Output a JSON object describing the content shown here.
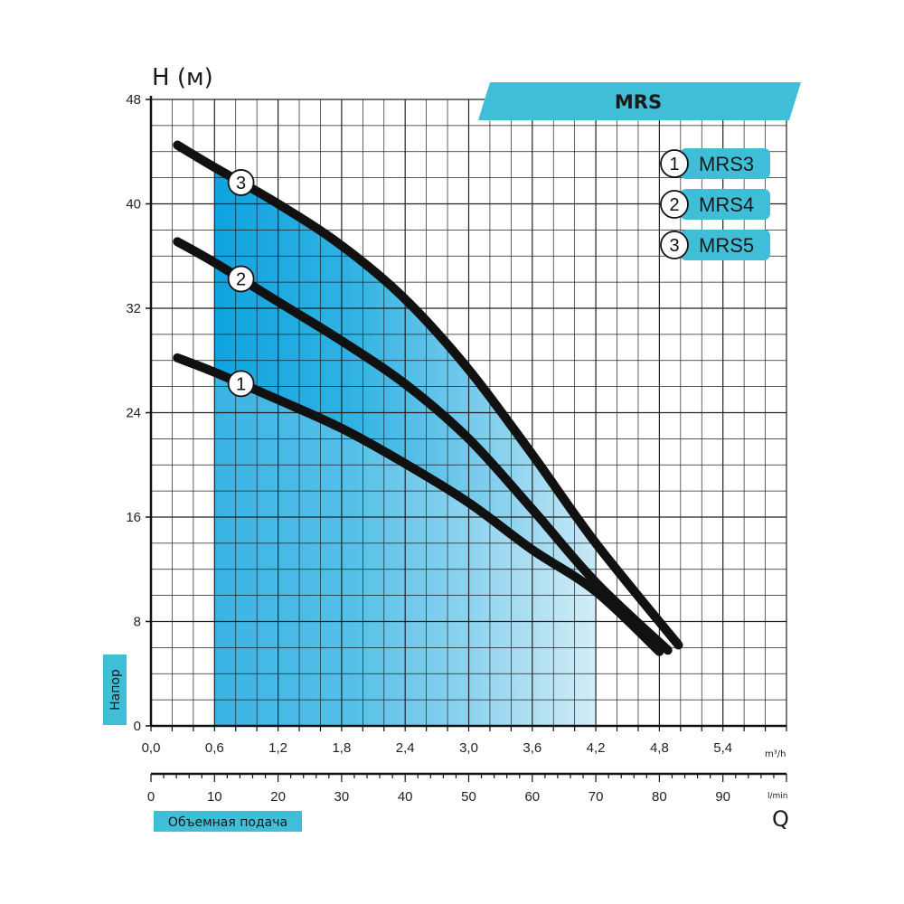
{
  "chart_data": {
    "type": "line",
    "title": "MRS",
    "ylabel": "H (м)",
    "y_side_label": "Напор",
    "xlabel": "Q",
    "x_side_label": "Объемная подача",
    "x_unit_m3h": "m³/h",
    "x_unit_lmin": "l/min",
    "ylim": [
      0,
      48
    ],
    "xlim_m3h": [
      0,
      6.0
    ],
    "xlim_lmin": [
      0,
      100
    ],
    "y_ticks": [
      "0",
      "8",
      "16",
      "24",
      "32",
      "40",
      "48"
    ],
    "x_ticks_m3h": [
      "0,0",
      "0,6",
      "1,2",
      "1,8",
      "2,4",
      "3,0",
      "3,6",
      "4,2",
      "4,8",
      "5,4"
    ],
    "x_ticks_lmin": [
      "0",
      "10",
      "20",
      "30",
      "40",
      "50",
      "60",
      "70",
      "80",
      "90"
    ],
    "recommended_range_m3h": [
      0.6,
      4.2
    ],
    "grid": true,
    "legend_position": "top-right",
    "series": [
      {
        "name": "MRS3",
        "marker": "1",
        "color": "#111111",
        "x": [
          0.25,
          0.6,
          1.2,
          1.8,
          2.4,
          3.0,
          3.6,
          4.2,
          4.8
        ],
        "y": [
          28.2,
          27.1,
          25.0,
          22.8,
          20.1,
          17.1,
          13.5,
          10.3,
          5.7
        ]
      },
      {
        "name": "MRS4",
        "marker": "2",
        "color": "#111111",
        "x": [
          0.25,
          0.6,
          1.2,
          1.8,
          2.4,
          3.0,
          3.6,
          4.2,
          4.88
        ],
        "y": [
          37.1,
          35.5,
          32.5,
          29.5,
          26.2,
          22.0,
          16.6,
          11.0,
          5.8
        ]
      },
      {
        "name": "MRS5",
        "marker": "3",
        "color": "#111111",
        "x": [
          0.25,
          0.6,
          1.2,
          1.8,
          2.4,
          3.0,
          3.6,
          4.2,
          4.98
        ],
        "y": [
          44.5,
          42.8,
          40.0,
          36.8,
          32.7,
          27.3,
          20.8,
          14.0,
          6.2
        ]
      }
    ]
  },
  "colors": {
    "accent": "#40bdd7",
    "fill_dark": "#0fa3df",
    "fill_light": "#e9f5fb",
    "grid": "#222222"
  }
}
